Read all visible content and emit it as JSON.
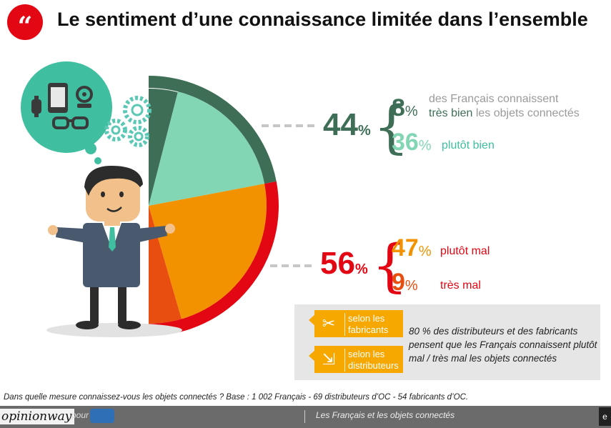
{
  "header": {
    "badge": "“",
    "title": "Le sentiment d’une connaissance limitée dans l’ensemble"
  },
  "colors": {
    "dark_green": "#3e6e55",
    "light_green": "#82d6b4",
    "orange": "#f39200",
    "dark_orange": "#e84e0f",
    "red": "#e30613",
    "tag_orange": "#f6a800"
  },
  "chart_data": {
    "type": "pie",
    "groups": [
      {
        "total_label": "44",
        "total_unit": "%",
        "color": "#3e6e55",
        "items": [
          {
            "value": 8,
            "unit": "%",
            "label_lines": [
              "des Français connaissent",
              "très bien les objets connectés"
            ],
            "color": "#3e6e55"
          },
          {
            "value": 36,
            "unit": "%",
            "label_lines": [
              "plutôt bien"
            ],
            "color": "#82d6b4"
          }
        ]
      },
      {
        "total_label": "56",
        "total_unit": "%",
        "color": "#e30613",
        "items": [
          {
            "value": 47,
            "unit": "%",
            "label_lines": [
              "plutôt mal"
            ],
            "color": "#f39200"
          },
          {
            "value": 9,
            "unit": "%",
            "label_lines": [
              "très mal"
            ],
            "color": "#e84e0f"
          }
        ]
      }
    ]
  },
  "info_box": {
    "tags": [
      {
        "icon": "tools-icon",
        "label": "selon les fabricants"
      },
      {
        "icon": "dolly-icon",
        "label": "selon les distributeurs"
      }
    ],
    "text": "80 % des distributeurs et des fabricants pensent que les Français connaissent plutôt mal / très mal les objets connectés"
  },
  "footnote": "Dans quelle mesure connaissez-vous les objets connectés ? Base : 1 002 Français  - 69 distributeurs d’OC  - 54 fabricants d’OC.",
  "footer": {
    "brand": "opinionway",
    "pour": "pour",
    "title": "Les Français et les objets connectés",
    "corner": "e"
  },
  "illustration": {
    "thought_icons": [
      "watch-icon",
      "phone-icon",
      "webcam-icon",
      "glasses-icon"
    ],
    "gear_icon": "gear-icon",
    "character": "businessman-illustration"
  }
}
